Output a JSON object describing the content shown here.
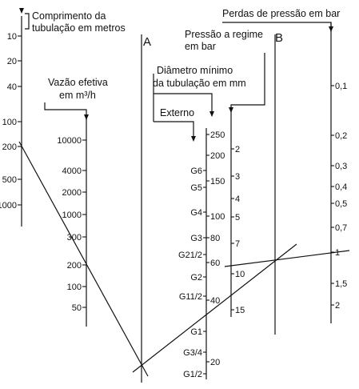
{
  "headers": {
    "comprimento": [
      "Comprimento da",
      "tubulação em metros"
    ],
    "vazao": [
      "Vazão efetiva",
      "em m³/h"
    ],
    "diametro": [
      "Diâmetro mínimo",
      "da tubulação em mm"
    ],
    "externo": "Externo",
    "pressao": [
      "Pressão a regime",
      "em bar"
    ],
    "perdas": "Perdas de pressão em bar"
  },
  "axis_letters": {
    "A": "A",
    "B": "B"
  },
  "scales": {
    "comprimento": [
      "10",
      "20",
      "40",
      "100",
      "200",
      "500",
      "1000"
    ],
    "vazao": [
      "10000",
      "4000",
      "2000",
      "1000",
      "300",
      "200",
      "100",
      "50"
    ],
    "diametro_mm": [
      "250",
      "200",
      "150",
      "100",
      "80",
      "60",
      "40",
      "20"
    ],
    "diametro_pol": [
      "G6",
      "G5",
      "G4",
      "G3",
      "G21/2",
      "G2",
      "G11/2",
      "G1",
      "G3/4",
      "G1/2"
    ],
    "pressao": [
      "2",
      "3",
      "4",
      "5",
      "7",
      "10",
      "15"
    ],
    "perdas": [
      "0,1",
      "0,2",
      "0,3",
      "0,4",
      "0,5",
      "0,7",
      "1",
      "1,5",
      "2"
    ]
  },
  "colors": {
    "line": "#111111",
    "background": "#ffffff"
  }
}
